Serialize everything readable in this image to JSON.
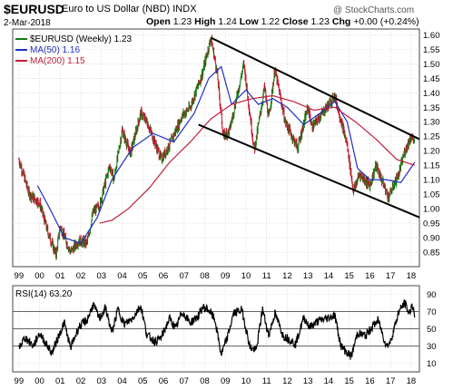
{
  "header": {
    "ticker": "$EURUSD",
    "description": "Euro to US Dollar (NBD)  INDX",
    "date": "2-Mar-2018",
    "watermark": "@ StockCharts.com",
    "open_label": "Open",
    "open": "1.23",
    "high_label": "High",
    "high": "1.24",
    "low_label": "Low",
    "low": "1.22",
    "close_label": "Close",
    "close": "1.23",
    "chg_label": "Chg",
    "chg": "+0.00 (+0.24%)"
  },
  "legend": {
    "price": "$EURUSD (Weekly) 1.23",
    "ma50": "MA(50) 1.16",
    "ma200": "MA(200) 1.15",
    "rsi": "RSI(14) 63.20"
  },
  "colors": {
    "up": "#117a11",
    "down": "#c8102e",
    "ma50": "#1f2fbf",
    "ma200": "#c0203a",
    "trend": "#000000",
    "grid": "#c8c8c8",
    "rsi": "#000000"
  },
  "chart_data": [
    {
      "type": "line",
      "series_style": "ohlc-bars",
      "x": [
        1999,
        2000,
        2001,
        2002,
        2003,
        2004,
        2005,
        2006,
        2007,
        2008,
        2009,
        2010,
        2011,
        2012,
        2013,
        2014,
        2015,
        2016,
        2017,
        2018
      ],
      "x_tick_labels": [
        "99",
        "00",
        "01",
        "02",
        "03",
        "04",
        "05",
        "06",
        "07",
        "08",
        "09",
        "10",
        "11",
        "12",
        "13",
        "14",
        "15",
        "16",
        "17",
        "18"
      ],
      "y_ticks": [
        "0.85",
        "0.90",
        "0.95",
        "1.00",
        "1.05",
        "1.10",
        "1.15",
        "1.20",
        "1.25",
        "1.30",
        "1.35",
        "1.40",
        "1.45",
        "1.50",
        "1.55",
        "1.60"
      ],
      "ylim": [
        0.8,
        1.62
      ],
      "xlim": [
        1998.7,
        2018.4
      ],
      "grid": true,
      "series": [
        {
          "name": "$EURUSD (Weekly) 1.23",
          "points": [
            [
              1999.0,
              1.17
            ],
            [
              1999.5,
              1.05
            ],
            [
              2000.0,
              1.02
            ],
            [
              2000.4,
              0.92
            ],
            [
              2000.8,
              0.84
            ],
            [
              2001.0,
              0.94
            ],
            [
              2001.5,
              0.85
            ],
            [
              2001.9,
              0.89
            ],
            [
              2002.3,
              0.88
            ],
            [
              2002.6,
              0.99
            ],
            [
              2002.9,
              1.01
            ],
            [
              2003.4,
              1.15
            ],
            [
              2003.6,
              1.1
            ],
            [
              2004.0,
              1.27
            ],
            [
              2004.4,
              1.19
            ],
            [
              2004.9,
              1.33
            ],
            [
              2005.2,
              1.3
            ],
            [
              2005.9,
              1.17
            ],
            [
              2006.3,
              1.22
            ],
            [
              2006.9,
              1.32
            ],
            [
              2007.3,
              1.35
            ],
            [
              2007.9,
              1.47
            ],
            [
              2008.3,
              1.59
            ],
            [
              2008.6,
              1.47
            ],
            [
              2008.9,
              1.25
            ],
            [
              2009.2,
              1.27
            ],
            [
              2009.9,
              1.5
            ],
            [
              2010.4,
              1.2
            ],
            [
              2010.9,
              1.42
            ],
            [
              2011.1,
              1.31
            ],
            [
              2011.4,
              1.48
            ],
            [
              2011.9,
              1.3
            ],
            [
              2012.5,
              1.21
            ],
            [
              2013.0,
              1.35
            ],
            [
              2013.2,
              1.28
            ],
            [
              2014.3,
              1.39
            ],
            [
              2014.9,
              1.22
            ],
            [
              2015.2,
              1.06
            ],
            [
              2015.5,
              1.12
            ],
            [
              2016.0,
              1.08
            ],
            [
              2016.3,
              1.15
            ],
            [
              2016.9,
              1.04
            ],
            [
              2017.4,
              1.12
            ],
            [
              2017.7,
              1.2
            ],
            [
              2018.0,
              1.25
            ],
            [
              2018.17,
              1.23
            ]
          ]
        },
        {
          "name": "MA(50) 1.16",
          "points": [
            [
              1999.9,
              1.08
            ],
            [
              2000.5,
              1.0
            ],
            [
              2001.2,
              0.9
            ],
            [
              2002.0,
              0.88
            ],
            [
              2002.8,
              0.97
            ],
            [
              2003.5,
              1.1
            ],
            [
              2004.5,
              1.21
            ],
            [
              2005.5,
              1.26
            ],
            [
              2006.5,
              1.23
            ],
            [
              2007.5,
              1.33
            ],
            [
              2008.2,
              1.45
            ],
            [
              2008.8,
              1.49
            ],
            [
              2009.3,
              1.36
            ],
            [
              2010.0,
              1.41
            ],
            [
              2010.6,
              1.36
            ],
            [
              2011.3,
              1.38
            ],
            [
              2012.0,
              1.35
            ],
            [
              2012.8,
              1.29
            ],
            [
              2013.6,
              1.33
            ],
            [
              2014.3,
              1.37
            ],
            [
              2014.9,
              1.3
            ],
            [
              2015.4,
              1.14
            ],
            [
              2016.0,
              1.1
            ],
            [
              2016.8,
              1.1
            ],
            [
              2017.5,
              1.09
            ],
            [
              2018.17,
              1.16
            ]
          ]
        },
        {
          "name": "MA(200) 1.15",
          "points": [
            [
              2002.9,
              0.95
            ],
            [
              2003.5,
              0.96
            ],
            [
              2004.3,
              1.0
            ],
            [
              2005.3,
              1.07
            ],
            [
              2006.3,
              1.16
            ],
            [
              2007.3,
              1.23
            ],
            [
              2008.3,
              1.31
            ],
            [
              2009.3,
              1.36
            ],
            [
              2010.3,
              1.38
            ],
            [
              2011.3,
              1.39
            ],
            [
              2012.3,
              1.37
            ],
            [
              2013.3,
              1.34
            ],
            [
              2014.3,
              1.35
            ],
            [
              2015.3,
              1.3
            ],
            [
              2016.3,
              1.24
            ],
            [
              2017.3,
              1.17
            ],
            [
              2018.17,
              1.15
            ]
          ]
        }
      ],
      "trendlines": [
        {
          "from": [
            2008.3,
            1.59
          ],
          "to": [
            2018.4,
            1.24
          ]
        },
        {
          "from": [
            2007.7,
            1.29
          ],
          "to": [
            2018.4,
            0.97
          ]
        }
      ]
    },
    {
      "type": "line",
      "name": "RSI(14) 63.20",
      "ylim": [
        0,
        100
      ],
      "y_ticks": [
        "10",
        "30",
        "50",
        "70",
        "90"
      ],
      "reference_lines": [
        30,
        50,
        70
      ],
      "x_tick_labels": [
        "99",
        "00",
        "01",
        "02",
        "03",
        "04",
        "05",
        "06",
        "07",
        "08",
        "09",
        "10",
        "11",
        "12",
        "13",
        "14",
        "15",
        "16",
        "17",
        "18"
      ],
      "grid": true,
      "series": [
        {
          "name": "RSI(14) 63.20",
          "points": [
            [
              1999.0,
              28
            ],
            [
              1999.3,
              40
            ],
            [
              1999.7,
              30
            ],
            [
              2000.0,
              45
            ],
            [
              2000.3,
              33
            ],
            [
              2000.6,
              22
            ],
            [
              2000.9,
              40
            ],
            [
              2001.2,
              57
            ],
            [
              2001.5,
              28
            ],
            [
              2001.9,
              52
            ],
            [
              2002.3,
              60
            ],
            [
              2002.6,
              78
            ],
            [
              2002.9,
              62
            ],
            [
              2003.2,
              74
            ],
            [
              2003.5,
              45
            ],
            [
              2003.8,
              73
            ],
            [
              2004.1,
              55
            ],
            [
              2004.5,
              62
            ],
            [
              2004.9,
              77
            ],
            [
              2005.2,
              43
            ],
            [
              2005.6,
              35
            ],
            [
              2005.9,
              40
            ],
            [
              2006.3,
              62
            ],
            [
              2006.6,
              50
            ],
            [
              2006.9,
              70
            ],
            [
              2007.3,
              57
            ],
            [
              2007.7,
              65
            ],
            [
              2007.9,
              75
            ],
            [
              2008.2,
              72
            ],
            [
              2008.5,
              60
            ],
            [
              2008.8,
              20
            ],
            [
              2009.1,
              40
            ],
            [
              2009.4,
              68
            ],
            [
              2009.8,
              72
            ],
            [
              2010.2,
              28
            ],
            [
              2010.5,
              25
            ],
            [
              2010.8,
              73
            ],
            [
              2011.1,
              42
            ],
            [
              2011.4,
              68
            ],
            [
              2011.8,
              42
            ],
            [
              2012.1,
              38
            ],
            [
              2012.4,
              32
            ],
            [
              2012.8,
              63
            ],
            [
              2013.1,
              52
            ],
            [
              2013.5,
              59
            ],
            [
              2013.9,
              62
            ],
            [
              2014.3,
              66
            ],
            [
              2014.6,
              30
            ],
            [
              2014.9,
              22
            ],
            [
              2015.1,
              18
            ],
            [
              2015.4,
              45
            ],
            [
              2015.8,
              42
            ],
            [
              2016.1,
              52
            ],
            [
              2016.4,
              60
            ],
            [
              2016.8,
              30
            ],
            [
              2017.0,
              35
            ],
            [
              2017.4,
              70
            ],
            [
              2017.7,
              80
            ],
            [
              2017.9,
              67
            ],
            [
              2018.05,
              79
            ],
            [
              2018.17,
              63
            ]
          ]
        }
      ]
    }
  ]
}
